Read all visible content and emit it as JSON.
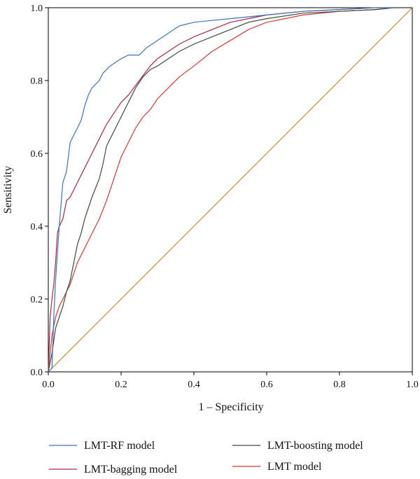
{
  "chart_data": {
    "type": "line",
    "title": "",
    "xlabel": "1 – Specificity",
    "ylabel": "Sensitivity",
    "xlim": [
      0,
      1
    ],
    "ylim": [
      0,
      1
    ],
    "xticks": [
      "0.0",
      "0.2",
      "0.4",
      "0.6",
      "0.8",
      "1.0"
    ],
    "yticks": [
      "0.0",
      "0.2",
      "0.4",
      "0.6",
      "0.8",
      "1.0"
    ],
    "grid": false,
    "legend_position": "bottom",
    "reference_line": {
      "x": [
        0,
        1
      ],
      "y": [
        0,
        1
      ],
      "color": "#b8860b"
    },
    "series": [
      {
        "name": "LMT-RF model",
        "color": "#3f73b4",
        "x": [
          0,
          0.01,
          0.015,
          0.02,
          0.03,
          0.04,
          0.05,
          0.06,
          0.08,
          0.09,
          0.1,
          0.11,
          0.12,
          0.14,
          0.15,
          0.17,
          0.2,
          0.22,
          0.25,
          0.27,
          0.3,
          0.33,
          0.36,
          0.4,
          0.45,
          0.5,
          0.55,
          0.6,
          0.65,
          0.7,
          0.8,
          0.9,
          0.95
        ],
        "y": [
          0,
          0.01,
          0.15,
          0.25,
          0.4,
          0.52,
          0.55,
          0.63,
          0.67,
          0.69,
          0.73,
          0.76,
          0.78,
          0.8,
          0.82,
          0.84,
          0.86,
          0.87,
          0.87,
          0.89,
          0.91,
          0.93,
          0.95,
          0.96,
          0.965,
          0.97,
          0.975,
          0.98,
          0.985,
          0.99,
          0.995,
          1.0,
          1.0
        ]
      },
      {
        "name": "LMT-bagging model",
        "color": "#a82747",
        "x": [
          0,
          0.005,
          0.01,
          0.015,
          0.02,
          0.025,
          0.03,
          0.04,
          0.05,
          0.06,
          0.08,
          0.1,
          0.12,
          0.14,
          0.16,
          0.18,
          0.2,
          0.22,
          0.25,
          0.28,
          0.3,
          0.33,
          0.36,
          0.4,
          0.45,
          0.5,
          0.55,
          0.6,
          0.7,
          0.8,
          0.9,
          0.95
        ],
        "y": [
          0,
          0.15,
          0.2,
          0.24,
          0.3,
          0.38,
          0.4,
          0.42,
          0.47,
          0.48,
          0.52,
          0.56,
          0.6,
          0.64,
          0.68,
          0.71,
          0.74,
          0.76,
          0.8,
          0.84,
          0.86,
          0.88,
          0.9,
          0.92,
          0.94,
          0.96,
          0.97,
          0.98,
          0.99,
          0.995,
          1.0,
          1.0
        ]
      },
      {
        "name": "LMT-boosting model",
        "color": "#3a4f35",
        "x": [
          0,
          0.01,
          0.02,
          0.03,
          0.04,
          0.05,
          0.06,
          0.07,
          0.08,
          0.09,
          0.1,
          0.11,
          0.12,
          0.14,
          0.15,
          0.16,
          0.18,
          0.2,
          0.22,
          0.24,
          0.26,
          0.28,
          0.3,
          0.33,
          0.36,
          0.4,
          0.45,
          0.5,
          0.55,
          0.6,
          0.7,
          0.8,
          0.9,
          0.95
        ],
        "y": [
          0,
          0.05,
          0.12,
          0.15,
          0.18,
          0.22,
          0.25,
          0.3,
          0.35,
          0.38,
          0.42,
          0.45,
          0.48,
          0.53,
          0.57,
          0.62,
          0.66,
          0.7,
          0.74,
          0.78,
          0.81,
          0.83,
          0.84,
          0.86,
          0.88,
          0.9,
          0.92,
          0.94,
          0.96,
          0.97,
          0.985,
          0.99,
          0.995,
          1.0
        ]
      },
      {
        "name": "LMT model",
        "color": "#d93838",
        "x": [
          0,
          0.01,
          0.02,
          0.03,
          0.04,
          0.05,
          0.06,
          0.08,
          0.1,
          0.12,
          0.14,
          0.16,
          0.18,
          0.2,
          0.22,
          0.24,
          0.26,
          0.28,
          0.3,
          0.33,
          0.36,
          0.4,
          0.45,
          0.5,
          0.55,
          0.6,
          0.65,
          0.7,
          0.8,
          0.9,
          0.95
        ],
        "y": [
          0,
          0.1,
          0.15,
          0.18,
          0.2,
          0.22,
          0.24,
          0.3,
          0.34,
          0.38,
          0.42,
          0.47,
          0.53,
          0.59,
          0.63,
          0.67,
          0.7,
          0.72,
          0.75,
          0.78,
          0.81,
          0.84,
          0.88,
          0.91,
          0.94,
          0.96,
          0.97,
          0.98,
          0.99,
          0.995,
          1.0
        ]
      }
    ]
  }
}
